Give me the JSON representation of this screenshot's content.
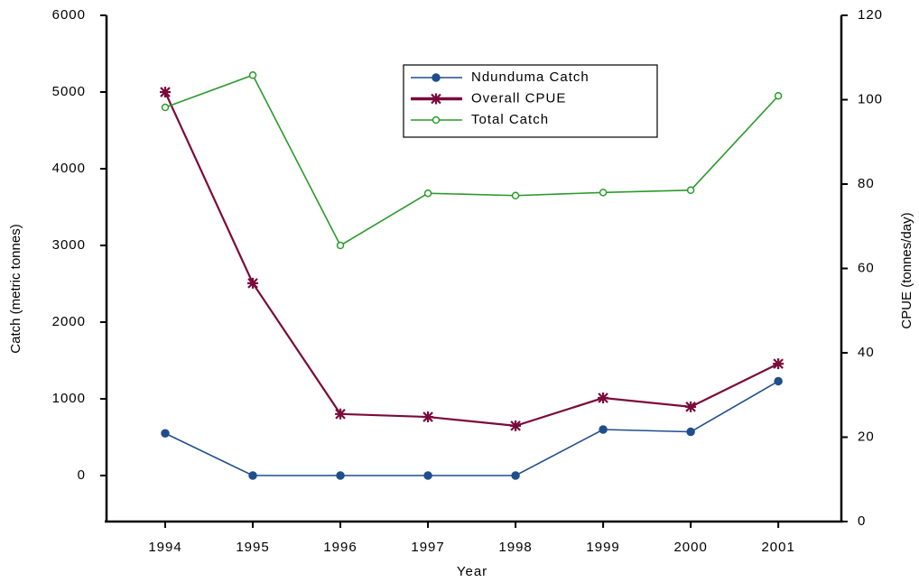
{
  "chart_data": {
    "type": "line",
    "x_label": "Year",
    "y_label": "Catch (metric tonnes)",
    "y2_label": "CPUE (tonnes/day)",
    "x": [
      1994,
      1995,
      1996,
      1997,
      1998,
      1999,
      2000,
      2001
    ],
    "xlim": [
      1993.33,
      2001.72
    ],
    "xticks": [
      1994,
      1995,
      1996,
      1997,
      1998,
      1999,
      2000,
      2001
    ],
    "ylim": [
      -600,
      6000
    ],
    "yticks": [
      0,
      1000,
      2000,
      3000,
      4000,
      5000,
      6000
    ],
    "y2lim": [
      0,
      120
    ],
    "y2ticks": [
      0,
      20,
      40,
      60,
      80,
      100,
      120
    ],
    "legend": "top-center",
    "grid": false,
    "series": [
      {
        "name": "Ndunduma Catch",
        "color": "#1f4e8c",
        "marker": "filled-circle",
        "values": [
          550,
          0,
          0,
          0,
          0,
          600,
          570,
          1230
        ]
      },
      {
        "name": "Overall CPUE",
        "color": "#7b0a3c",
        "marker": "star",
        "axis": "y2",
        "values": [
          101.8,
          56.5,
          25.5,
          24.8,
          22.7,
          29.3,
          27.2,
          37.4
        ]
      },
      {
        "name": "Total Catch",
        "color": "#2a9a2a",
        "marker": "open-circle",
        "values": [
          4800,
          5220,
          3000,
          3680,
          3650,
          3690,
          3720,
          4950
        ]
      }
    ]
  }
}
